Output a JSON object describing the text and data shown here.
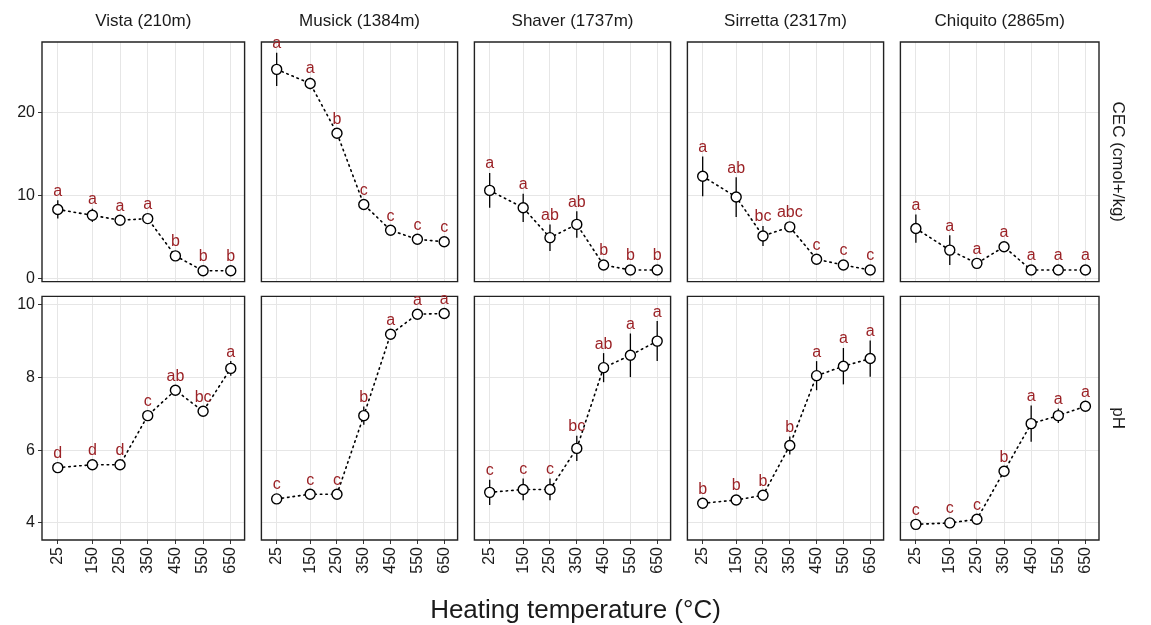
{
  "chart_data": [
    {
      "type": "line",
      "title": "Vista (210m)",
      "x": [
        25,
        150,
        250,
        350,
        450,
        550,
        650
      ],
      "xlim": [
        -32,
        700
      ],
      "xticks": [
        25,
        150,
        250,
        350,
        450,
        550,
        650
      ],
      "ylim": [
        -0.4,
        28.5
      ],
      "yticks": [
        0,
        10,
        20
      ],
      "tick_labels": "y",
      "grid": true,
      "marker": "circle",
      "line_style": "dotted",
      "series": [
        {
          "color": "#000000",
          "values": [
            8.3,
            7.6,
            7.0,
            7.2,
            2.7,
            0.9,
            0.9
          ],
          "errors": [
            1.1,
            0.8,
            0.3,
            0.4,
            0.5,
            0.2,
            0.2
          ]
        }
      ],
      "annotations": [
        {
          "text": "a",
          "x": 25,
          "y": 8.3
        },
        {
          "text": "a",
          "x": 150,
          "y": 7.6
        },
        {
          "text": "a",
          "x": 250,
          "y": 7.0
        },
        {
          "text": "a",
          "x": 350,
          "y": 7.2
        },
        {
          "text": "b",
          "x": 450,
          "y": 2.7
        },
        {
          "text": "b",
          "x": 550,
          "y": 0.9
        },
        {
          "text": "b",
          "x": 650,
          "y": 0.9
        }
      ]
    },
    {
      "type": "line",
      "title": "Musick (1384m)",
      "x": [
        25,
        150,
        250,
        350,
        450,
        550,
        650
      ],
      "xlim": [
        -32,
        700
      ],
      "xticks": [
        25,
        150,
        250,
        350,
        450,
        550,
        650
      ],
      "ylim": [
        -0.4,
        28.5
      ],
      "yticks": [
        0,
        10,
        20
      ],
      "tick_labels": false,
      "grid": true,
      "marker": "circle",
      "line_style": "dotted",
      "series": [
        {
          "color": "#000000",
          "values": [
            25.2,
            23.5,
            17.5,
            8.9,
            5.8,
            4.7,
            4.4
          ],
          "errors": [
            2.0,
            0.7,
            0.6,
            0.5,
            0.3,
            0.3,
            0.3
          ]
        }
      ],
      "annotations": [
        {
          "text": "a",
          "x": 25,
          "y": 25.2
        },
        {
          "text": "a",
          "x": 150,
          "y": 23.5
        },
        {
          "text": "b",
          "x": 250,
          "y": 17.5
        },
        {
          "text": "c",
          "x": 350,
          "y": 8.9
        },
        {
          "text": "c",
          "x": 450,
          "y": 5.8
        },
        {
          "text": "c",
          "x": 550,
          "y": 4.7
        },
        {
          "text": "c",
          "x": 650,
          "y": 4.4
        }
      ]
    },
    {
      "type": "line",
      "title": "Shaver (1737m)",
      "x": [
        25,
        150,
        250,
        350,
        450,
        550,
        650
      ],
      "xlim": [
        -32,
        700
      ],
      "xticks": [
        25,
        150,
        250,
        350,
        450,
        550,
        650
      ],
      "ylim": [
        -0.4,
        28.5
      ],
      "yticks": [
        0,
        10,
        20
      ],
      "tick_labels": false,
      "grid": true,
      "marker": "circle",
      "line_style": "dotted",
      "series": [
        {
          "color": "#000000",
          "values": [
            10.6,
            8.5,
            4.9,
            6.5,
            1.6,
            1.0,
            1.0
          ],
          "errors": [
            2.1,
            1.7,
            1.6,
            1.6,
            0.3,
            null,
            0.2
          ]
        }
      ],
      "annotations": [
        {
          "text": "a",
          "x": 25,
          "y": 10.6
        },
        {
          "text": "a",
          "x": 150,
          "y": 8.5
        },
        {
          "text": "ab",
          "x": 250,
          "y": 4.9
        },
        {
          "text": "ab",
          "x": 350,
          "y": 6.5
        },
        {
          "text": "b",
          "x": 450,
          "y": 1.6
        },
        {
          "text": "b",
          "x": 550,
          "y": 1.0
        },
        {
          "text": "b",
          "x": 650,
          "y": 1.0
        }
      ]
    },
    {
      "type": "line",
      "title": "Sirretta (2317m)",
      "x": [
        25,
        150,
        250,
        350,
        450,
        550,
        650
      ],
      "xlim": [
        -32,
        700
      ],
      "xticks": [
        25,
        150,
        250,
        350,
        450,
        550,
        650
      ],
      "ylim": [
        -0.4,
        28.5
      ],
      "yticks": [
        0,
        10,
        20
      ],
      "tick_labels": false,
      "grid": true,
      "marker": "circle",
      "line_style": "dotted",
      "series": [
        {
          "color": "#000000",
          "values": [
            12.3,
            9.8,
            5.1,
            6.2,
            2.3,
            1.6,
            1.0
          ],
          "errors": [
            2.4,
            2.4,
            1.2,
            0.4,
            0.4,
            0.3,
            0.2
          ]
        }
      ],
      "annotations": [
        {
          "text": "a",
          "x": 25,
          "y": 12.3
        },
        {
          "text": "ab",
          "x": 150,
          "y": 9.8
        },
        {
          "text": "bc",
          "x": 250,
          "y": 5.1
        },
        {
          "text": "abc",
          "x": 350,
          "y": 6.2
        },
        {
          "text": "c",
          "x": 450,
          "y": 2.3
        },
        {
          "text": "c",
          "x": 550,
          "y": 1.6
        },
        {
          "text": "c",
          "x": 650,
          "y": 1.0
        }
      ]
    },
    {
      "type": "line",
      "title": "Chiquito (2865m)",
      "ylabel": "CEC (cmol+/kg)",
      "x": [
        25,
        150,
        250,
        350,
        450,
        550,
        650
      ],
      "xlim": [
        -32,
        700
      ],
      "xticks": [
        25,
        150,
        250,
        350,
        450,
        550,
        650
      ],
      "ylim": [
        -0.4,
        28.5
      ],
      "yticks": [
        0,
        10,
        20
      ],
      "tick_labels": false,
      "grid": true,
      "marker": "circle",
      "line_style": "dotted",
      "series": [
        {
          "color": "#000000",
          "values": [
            6.0,
            3.4,
            1.8,
            3.8,
            1.0,
            1.0,
            1.0
          ],
          "errors": [
            1.7,
            1.8,
            0.6,
            0.5,
            0.2,
            null,
            null
          ]
        }
      ],
      "annotations": [
        {
          "text": "a",
          "x": 25,
          "y": 6.0
        },
        {
          "text": "a",
          "x": 150,
          "y": 3.4
        },
        {
          "text": "a",
          "x": 250,
          "y": 1.8
        },
        {
          "text": "a",
          "x": 350,
          "y": 3.8
        },
        {
          "text": "a",
          "x": 450,
          "y": 1.0
        },
        {
          "text": "a",
          "x": 550,
          "y": 1.0
        },
        {
          "text": "a",
          "x": 650,
          "y": 1.0
        }
      ]
    },
    {
      "type": "line",
      "x": [
        25,
        150,
        250,
        350,
        450,
        550,
        650
      ],
      "xlim": [
        -32,
        700
      ],
      "xticks": [
        25,
        150,
        250,
        350,
        450,
        550,
        650
      ],
      "ylim": [
        3.53,
        10.23
      ],
      "yticks": [
        4,
        6,
        8,
        10
      ],
      "grid": true,
      "marker": "circle",
      "line_style": "dotted",
      "series": [
        {
          "color": "#000000",
          "values": [
            5.52,
            5.6,
            5.6,
            6.95,
            7.65,
            7.07,
            8.25
          ],
          "errors": [
            0.1,
            0.1,
            0.1,
            0.12,
            0.12,
            0.12,
            0.2
          ]
        }
      ],
      "annotations": [
        {
          "text": "d",
          "x": 25,
          "y": 5.52
        },
        {
          "text": "d",
          "x": 150,
          "y": 5.6
        },
        {
          "text": "d",
          "x": 250,
          "y": 5.6
        },
        {
          "text": "c",
          "x": 350,
          "y": 6.95
        },
        {
          "text": "ab",
          "x": 450,
          "y": 7.65
        },
        {
          "text": "bc",
          "x": 550,
          "y": 7.07
        },
        {
          "text": "a",
          "x": 650,
          "y": 8.25
        }
      ]
    },
    {
      "type": "line",
      "x": [
        25,
        150,
        250,
        350,
        450,
        550,
        650
      ],
      "xlim": [
        -32,
        700
      ],
      "xticks": [
        25,
        150,
        250,
        350,
        450,
        550,
        650
      ],
      "ylim": [
        3.53,
        10.23
      ],
      "yticks": [
        4,
        6,
        8,
        10
      ],
      "tick_labels": "x",
      "grid": true,
      "marker": "circle",
      "line_style": "dotted",
      "series": [
        {
          "color": "#000000",
          "values": [
            4.66,
            4.79,
            4.79,
            6.95,
            9.19,
            9.74,
            9.76
          ],
          "errors": [
            0.08,
            0.08,
            0.08,
            0.25,
            0.1,
            0.1,
            0.1
          ]
        }
      ],
      "annotations": [
        {
          "text": "c",
          "x": 25,
          "y": 4.66
        },
        {
          "text": "c",
          "x": 150,
          "y": 4.79
        },
        {
          "text": "c",
          "x": 250,
          "y": 4.79
        },
        {
          "text": "b",
          "x": 350,
          "y": 6.95
        },
        {
          "text": "a",
          "x": 450,
          "y": 9.19
        },
        {
          "text": "a",
          "x": 550,
          "y": 9.74
        },
        {
          "text": "a",
          "x": 650,
          "y": 9.76
        }
      ]
    },
    {
      "type": "line",
      "xlabel": "Heating temperature (°C)",
      "x": [
        25,
        150,
        250,
        350,
        450,
        550,
        650
      ],
      "xlim": [
        -32,
        700
      ],
      "xticks": [
        25,
        150,
        250,
        350,
        450,
        550,
        650
      ],
      "ylim": [
        3.53,
        10.23
      ],
      "yticks": [
        4,
        6,
        8,
        10
      ],
      "tick_labels": "x",
      "grid": true,
      "marker": "circle",
      "line_style": "dotted",
      "series": [
        {
          "color": "#000000",
          "values": [
            4.84,
            4.92,
            4.92,
            6.05,
            8.27,
            8.61,
            9.0
          ],
          "errors": [
            0.35,
            0.3,
            0.3,
            0.35,
            0.4,
            0.6,
            0.55
          ]
        }
      ],
      "annotations": [
        {
          "text": "c",
          "x": 25,
          "y": 4.84
        },
        {
          "text": "c",
          "x": 150,
          "y": 4.92
        },
        {
          "text": "c",
          "x": 250,
          "y": 4.92
        },
        {
          "text": "bc",
          "x": 350,
          "y": 6.05
        },
        {
          "text": "ab",
          "x": 450,
          "y": 8.27
        },
        {
          "text": "a",
          "x": 550,
          "y": 8.61
        },
        {
          "text": "a",
          "x": 650,
          "y": 9.0
        }
      ]
    },
    {
      "type": "line",
      "x": [
        25,
        150,
        250,
        350,
        450,
        550,
        650
      ],
      "xlim": [
        -32,
        700
      ],
      "xticks": [
        25,
        150,
        250,
        350,
        450,
        550,
        650
      ],
      "ylim": [
        3.53,
        10.23
      ],
      "yticks": [
        4,
        6,
        8,
        10
      ],
      "tick_labels": "x",
      "grid": true,
      "marker": "circle",
      "line_style": "dotted",
      "series": [
        {
          "color": "#000000",
          "values": [
            4.54,
            4.63,
            4.76,
            6.13,
            8.05,
            8.31,
            8.52
          ],
          "errors": [
            0.08,
            0.08,
            0.08,
            0.25,
            0.4,
            0.5,
            0.5
          ]
        }
      ],
      "annotations": [
        {
          "text": "b",
          "x": 25,
          "y": 4.54
        },
        {
          "text": "b",
          "x": 150,
          "y": 4.63
        },
        {
          "text": "b",
          "x": 250,
          "y": 4.76
        },
        {
          "text": "b",
          "x": 350,
          "y": 6.13
        },
        {
          "text": "a",
          "x": 450,
          "y": 8.05
        },
        {
          "text": "a",
          "x": 550,
          "y": 8.31
        },
        {
          "text": "a",
          "x": 650,
          "y": 8.52
        }
      ]
    },
    {
      "type": "line",
      "ylabel": "pH",
      "x": [
        25,
        150,
        250,
        350,
        450,
        550,
        650
      ],
      "xlim": [
        -32,
        700
      ],
      "xticks": [
        25,
        150,
        250,
        350,
        450,
        550,
        650
      ],
      "ylim": [
        3.53,
        10.23
      ],
      "yticks": [
        4,
        6,
        8,
        10
      ],
      "tick_labels": "x",
      "grid": true,
      "marker": "circle",
      "line_style": "dotted",
      "series": [
        {
          "color": "#000000",
          "values": [
            3.96,
            4.0,
            4.1,
            5.42,
            6.73,
            6.95,
            7.21
          ],
          "errors": [
            0.05,
            0.05,
            0.08,
            0.1,
            0.5,
            0.2,
            0.1
          ]
        }
      ],
      "annotations": [
        {
          "text": "c",
          "x": 25,
          "y": 3.96
        },
        {
          "text": "c",
          "x": 150,
          "y": 4.0
        },
        {
          "text": "c",
          "x": 250,
          "y": 4.1
        },
        {
          "text": "b",
          "x": 350,
          "y": 5.42
        },
        {
          "text": "a",
          "x": 450,
          "y": 6.73
        },
        {
          "text": "a",
          "x": 550,
          "y": 6.95
        },
        {
          "text": "a",
          "x": 650,
          "y": 7.21
        }
      ]
    }
  ]
}
